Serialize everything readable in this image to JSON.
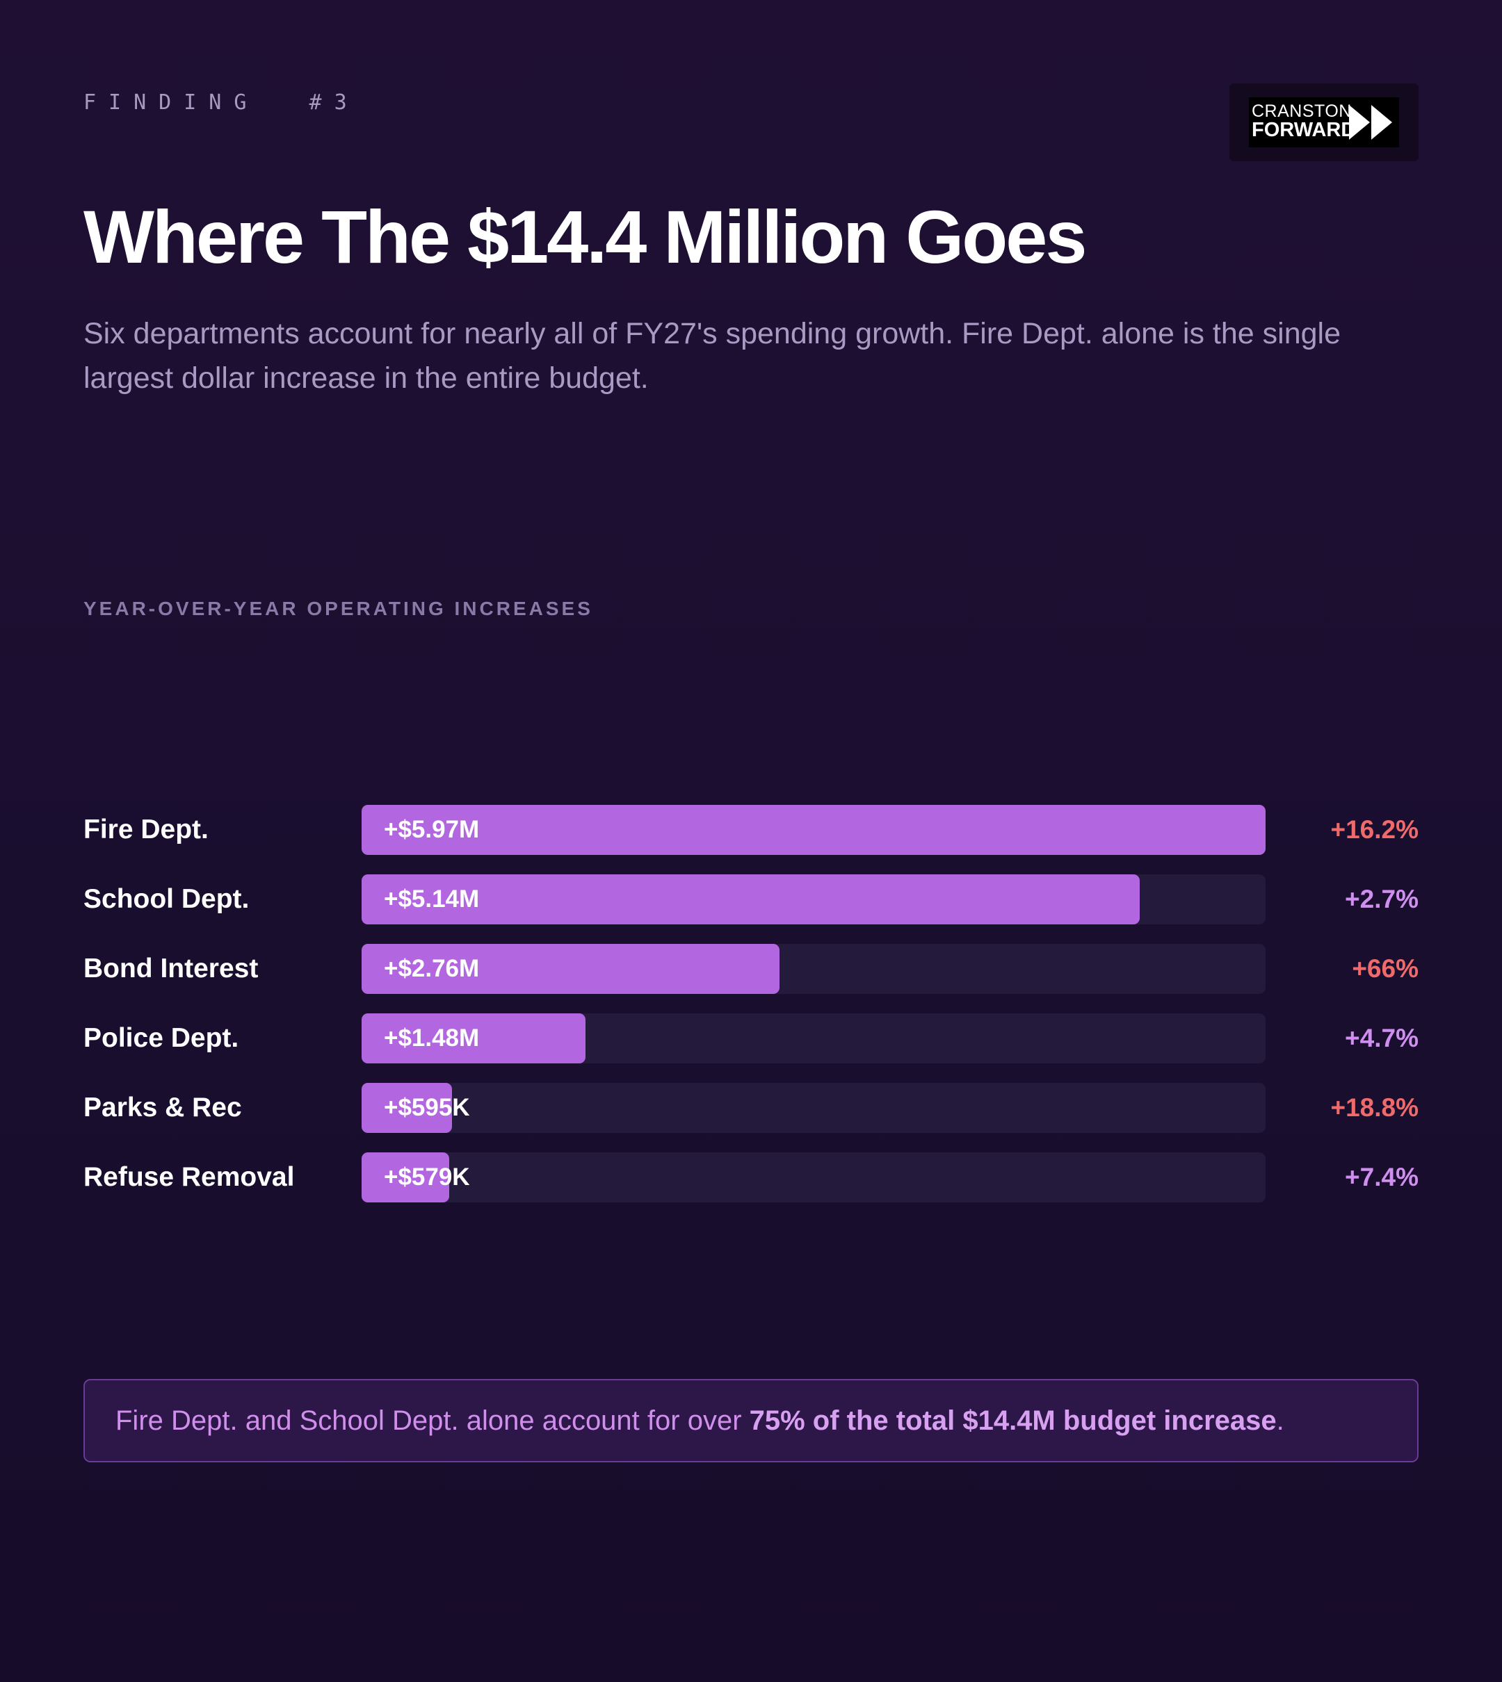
{
  "eyebrow": "FINDING  #3",
  "logo": {
    "line1": "CRANSTON",
    "line2": "FORWARD"
  },
  "title": "Where The $14.4 Million Goes",
  "subtitle": "Six departments account for nearly all of FY27's spending growth. Fire Dept. alone is the single largest dollar increase in the entire budget.",
  "section_label": "YEAR-OVER-YEAR OPERATING INCREASES",
  "colors": {
    "bar": "#b266e0",
    "track": "#241a3b",
    "pct_high": "#ef6b6b",
    "pct_normal": "#d08ef0"
  },
  "chart_data": {
    "type": "bar",
    "orientation": "horizontal",
    "title": "YEAR-OVER-YEAR OPERATING INCREASES",
    "categories": [
      "Fire Dept.",
      "School Dept.",
      "Bond Interest",
      "Police Dept.",
      "Parks & Rec",
      "Refuse Removal"
    ],
    "values": [
      5.97,
      5.14,
      2.76,
      1.48,
      0.595,
      0.579
    ],
    "unit": "$M",
    "xlim": [
      0,
      5.97
    ],
    "value_labels": [
      "+$5.97M",
      "+$5.14M",
      "+$2.76M",
      "+$1.48M",
      "+$595K",
      "+$579K"
    ],
    "percent_labels": [
      "+16.2%",
      "+2.7%",
      "+66%",
      "+4.7%",
      "+18.8%",
      "+7.4%"
    ],
    "percent_highlight": [
      true,
      false,
      true,
      false,
      true,
      false
    ]
  },
  "callout": {
    "prefix": "Fire Dept. and School Dept. alone account for over ",
    "emphasis": "75% of the total $14.4M budget increase",
    "suffix": "."
  }
}
